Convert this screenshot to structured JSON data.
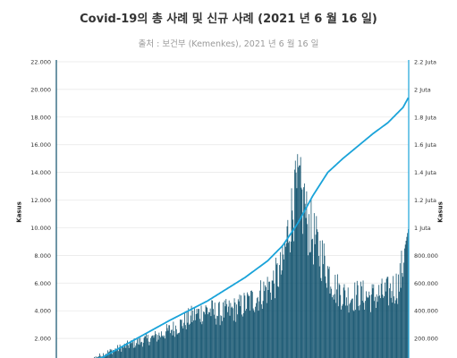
{
  "title": "Covid-19의 총 사례 및 신규 사례 (2021 년 6 월 16 일)",
  "subtitle": "출처 : 보건부 (Kemenkes), 2021 년 6 월 16 일",
  "colors": {
    "bars": "#0d4f6b",
    "line": "#1aa3d9",
    "grid": "#e6e6e6",
    "right_axis": "#1aa3d9"
  },
  "chart_data": {
    "type": "bar",
    "title": "Covid-19의 총 사례 및 신규 사례 (2021 년 6 월 16 일)",
    "subtitle": "출처 : 보건부 (Kemenkes), 2021 년 6 월 16 일",
    "ylabel": "Kasus",
    "y2label": "Kasus",
    "ylim": [
      0,
      22000
    ],
    "y2lim": [
      0,
      2200000
    ],
    "yticks": [
      "22.000",
      "20.000",
      "18.000",
      "16.000",
      "14.000",
      "12.000",
      "10.000",
      "8.000",
      "6.000",
      "4.000",
      "2.000"
    ],
    "y2ticks": [
      "2.2 Juta",
      "2 Juta",
      "1.8 Juta",
      "1.6 Juta",
      "1.4 Juta",
      "1.2 Juta",
      "1 Juta",
      "800.000",
      "600.000",
      "400.000",
      "200.000"
    ],
    "grid": true,
    "series": [
      {
        "type": "bar",
        "axis": "left",
        "knots": [
          [
            0,
            0
          ],
          [
            40,
            400
          ],
          [
            70,
            1100
          ],
          [
            100,
            1700
          ],
          [
            130,
            2200
          ],
          [
            160,
            3000
          ],
          [
            180,
            3800
          ],
          [
            200,
            4300
          ],
          [
            215,
            4000
          ],
          [
            240,
            4400
          ],
          [
            265,
            5200
          ],
          [
            285,
            6200
          ],
          [
            300,
            7500
          ],
          [
            308,
            10500
          ],
          [
            315,
            12500
          ],
          [
            322,
            13500
          ],
          [
            330,
            11500
          ],
          [
            340,
            10000
          ],
          [
            355,
            8000
          ],
          [
            370,
            6000
          ],
          [
            385,
            5300
          ],
          [
            400,
            5400
          ],
          [
            420,
            5300
          ],
          [
            440,
            5600
          ],
          [
            455,
            6300
          ],
          [
            462,
            8500
          ],
          [
            467,
            9900
          ]
        ],
        "peaks": [
          [
            316,
            14200
          ],
          [
            322,
            14500
          ],
          [
            329,
            13200
          ]
        ]
      },
      {
        "type": "line",
        "axis": "right",
        "knots": [
          [
            0,
            0
          ],
          [
            60,
            60000
          ],
          [
            100,
            180000
          ],
          [
            150,
            330000
          ],
          [
            200,
            470000
          ],
          [
            250,
            640000
          ],
          [
            280,
            760000
          ],
          [
            300,
            870000
          ],
          [
            320,
            1030000
          ],
          [
            340,
            1230000
          ],
          [
            360,
            1400000
          ],
          [
            380,
            1500000
          ],
          [
            400,
            1590000
          ],
          [
            420,
            1680000
          ],
          [
            440,
            1760000
          ],
          [
            460,
            1870000
          ],
          [
            467,
            1940000
          ]
        ]
      }
    ]
  }
}
